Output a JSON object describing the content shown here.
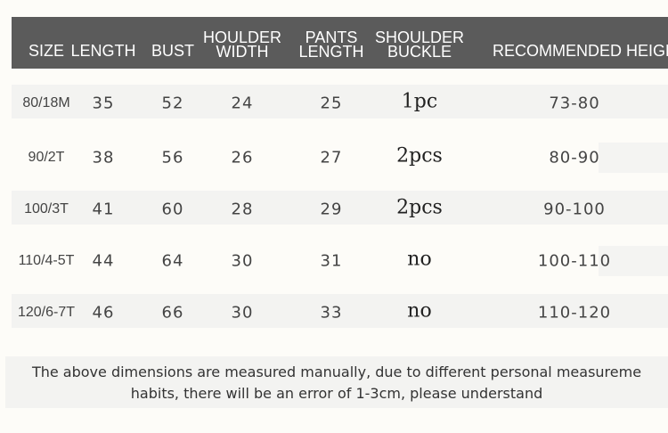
{
  "table": {
    "headers": [
      {
        "line1": "",
        "line2": "SIZE"
      },
      {
        "line1": "",
        "line2": "LENGTH"
      },
      {
        "line1": "",
        "line2": "BUST"
      },
      {
        "line1": "HOULDER",
        "line2": "WIDTH"
      },
      {
        "line1": "PANTS",
        "line2": "LENGTH"
      },
      {
        "line1": "SHOULDER",
        "line2": "BUCKLE"
      },
      {
        "line1": "",
        "line2": "RECOMMENDED HEIGH"
      }
    ],
    "rows": [
      [
        "80/18M",
        "35",
        "52",
        "24",
        "25",
        "1pc",
        "73-80"
      ],
      [
        "90/2T",
        "38",
        "56",
        "26",
        "27",
        "2pcs",
        "80-90"
      ],
      [
        "100/3T",
        "41",
        "60",
        "28",
        "29",
        "2pcs",
        "90-100"
      ],
      [
        "110/4-5T",
        "44",
        "64",
        "30",
        "31",
        "no",
        "100-110"
      ],
      [
        "120/6-7T",
        "46",
        "66",
        "30",
        "33",
        "no",
        "110-120"
      ]
    ]
  },
  "note": {
    "line1": "The above dimensions are measured manually, due to different personal measureme",
    "line2": "habits, there will be an error of 1-3cm, please understand"
  },
  "colors": {
    "header_bg": "#5b5b5b",
    "row_band": "#f3f3f1",
    "background": "#fdfcf8"
  }
}
